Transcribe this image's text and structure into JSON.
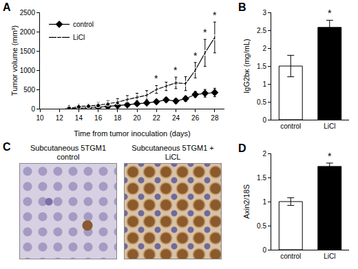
{
  "chart_data": [
    {
      "label": "A",
      "type": "line",
      "xlabel": "Time from tumor inoculation (days)",
      "ylabel": "Tumor volume (mm³)",
      "x": [
        13,
        14,
        15,
        16,
        17,
        18,
        19,
        20,
        21,
        22,
        23,
        24,
        25,
        26,
        27,
        28
      ],
      "series": [
        {
          "name": "control",
          "color": "#000000",
          "marker": "diamond",
          "values": [
            0,
            10,
            25,
            40,
            60,
            80,
            100,
            130,
            150,
            180,
            230,
            200,
            260,
            370,
            400,
            420
          ],
          "errors": [
            0,
            20,
            20,
            25,
            30,
            30,
            40,
            40,
            50,
            50,
            60,
            60,
            70,
            80,
            100,
            110
          ]
        },
        {
          "name": "LiCl",
          "color": "#000000",
          "marker": "circle-open",
          "values": [
            0,
            60,
            70,
            90,
            130,
            170,
            240,
            300,
            350,
            500,
            580,
            670,
            650,
            1000,
            1450,
            1850
          ],
          "errors": [
            0,
            60,
            60,
            70,
            80,
            90,
            100,
            100,
            120,
            100,
            110,
            150,
            180,
            200,
            350,
            400
          ]
        }
      ],
      "xlim": [
        10,
        29
      ],
      "xticks": [
        10,
        12,
        14,
        16,
        18,
        20,
        22,
        24,
        26,
        28
      ],
      "ylim": [
        0,
        2500
      ],
      "yticks": [
        0,
        500,
        1000,
        1500,
        2000,
        2500
      ],
      "legend": "upper left",
      "grid": false,
      "annotations": [
        {
          "x": 22,
          "text": "*"
        },
        {
          "x": 24,
          "text": "*"
        },
        {
          "x": 26,
          "text": "*"
        },
        {
          "x": 27,
          "text": "*"
        },
        {
          "x": 28,
          "text": "*"
        }
      ]
    },
    {
      "label": "B",
      "type": "bar",
      "ylabel": "IgG2bκ (mg/mL)",
      "categories": [
        "control",
        "LiCl"
      ],
      "values": [
        1.5,
        2.58
      ],
      "errors": [
        0.3,
        0.2
      ],
      "colors": [
        "#ffffff",
        "#000000"
      ],
      "ylim": [
        0,
        3
      ],
      "yticks": [
        0,
        0.5,
        1,
        1.5,
        2,
        2.5,
        3
      ],
      "grid": false,
      "annotations": [
        {
          "category": "LiCl",
          "text": "*"
        }
      ]
    },
    {
      "label": "D",
      "type": "bar",
      "ylabel": "Axin2/18S",
      "categories": [
        "control",
        "LiCl"
      ],
      "values": [
        1.0,
        1.73
      ],
      "errors": [
        0.08,
        0.07
      ],
      "colors": [
        "#ffffff",
        "#000000"
      ],
      "ylim": [
        0,
        2
      ],
      "yticks": [
        0,
        0.5,
        1,
        1.5,
        2
      ],
      "grid": false,
      "annotations": [
        {
          "category": "LiCl",
          "text": "*"
        }
      ]
    }
  ],
  "panel_c": {
    "label": "C",
    "images": [
      {
        "title": "Subcutaneous 5TGM1 control"
      },
      {
        "title": "Subcutaneous 5TGM1 + LiCL"
      }
    ]
  }
}
